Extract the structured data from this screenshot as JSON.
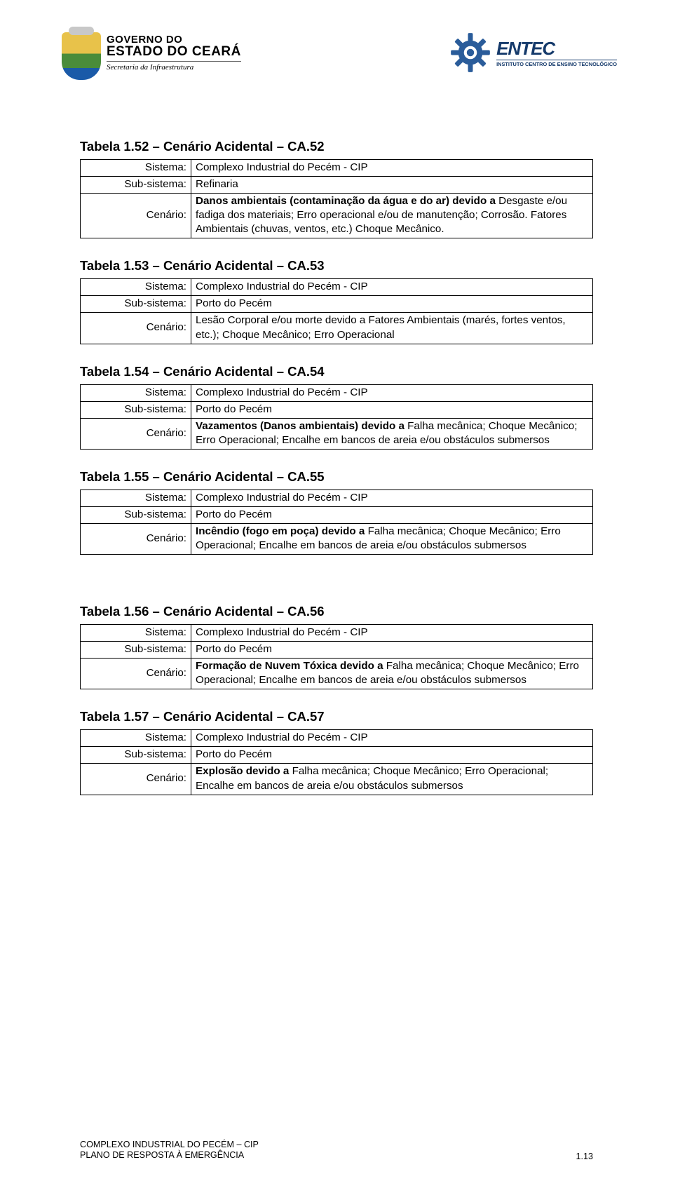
{
  "header": {
    "gov_line1": "GOVERNO DO",
    "gov_line2": "ESTADO DO CEARÁ",
    "gov_line3": "Secretaria da Infraestrutura",
    "entec_name": "ENTEC",
    "entec_sub": "INSTITUTO CENTRO DE ENSINO TECNOLÓGICO",
    "gear_color": "#2a5c9a"
  },
  "labels": {
    "sistema": "Sistema:",
    "sub_sistema": "Sub-sistema:",
    "cenario": "Cenário:"
  },
  "tables": [
    {
      "title": "Tabela 1.52 – Cenário Acidental – CA.52",
      "sistema": "Complexo Industrial do Pecém - CIP",
      "sub_sistema": "Refinaria",
      "cenario_bold": "Danos ambientais (contaminação da água e do ar) devido a",
      "cenario_rest": " Desgaste e/ou fadiga dos materiais; Erro operacional e/ou de manutenção; Corrosão. Fatores Ambientais (chuvas, ventos, etc.) Choque Mecânico."
    },
    {
      "title": "Tabela 1.53 – Cenário Acidental – CA.53",
      "sistema": "Complexo Industrial do Pecém - CIP",
      "sub_sistema": "Porto do Pecém",
      "cenario_bold": "",
      "cenario_rest": "Lesão Corporal e/ou morte devido a Fatores Ambientais (marés, fortes ventos, etc.); Choque Mecânico; Erro Operacional"
    },
    {
      "title": "Tabela 1.54 – Cenário Acidental – CA.54",
      "sistema": "Complexo Industrial do Pecém - CIP",
      "sub_sistema": "Porto do Pecém",
      "cenario_bold": "Vazamentos (Danos ambientais) devido a",
      "cenario_rest": " Falha mecânica; Choque Mecânico; Erro Operacional; Encalhe em bancos de areia e/ou obstáculos submersos"
    },
    {
      "title": "Tabela 1.55 – Cenário Acidental – CA.55",
      "sistema": "Complexo Industrial do Pecém - CIP",
      "sub_sistema": "Porto do Pecém",
      "cenario_bold": "Incêndio (fogo em poça) devido a",
      "cenario_rest": " Falha mecânica; Choque Mecânico; Erro Operacional; Encalhe em bancos de areia e/ou obstáculos submersos"
    },
    {
      "title": "Tabela 1.56 – Cenário Acidental – CA.56",
      "sistema": "Complexo Industrial do Pecém - CIP",
      "sub_sistema": "Porto do Pecém",
      "cenario_bold": "Formação de Nuvem Tóxica  devido a",
      "cenario_rest": " Falha mecânica; Choque Mecânico; Erro Operacional; Encalhe em bancos de areia e/ou obstáculos submersos",
      "gap_before": true
    },
    {
      "title": "Tabela 1.57 – Cenário Acidental – CA.57",
      "sistema": "Complexo Industrial do Pecém - CIP",
      "sub_sistema": "Porto do Pecém",
      "cenario_bold": "Explosão devido a",
      "cenario_rest": " Falha mecânica; Choque Mecânico; Erro Operacional; Encalhe em bancos de areia e/ou obstáculos submersos"
    }
  ],
  "footer": {
    "line1": "COMPLEXO INDUSTRIAL DO PECÉM – CIP",
    "line2": "PLANO DE RESPOSTA À EMERGÊNCIA",
    "page": "1.13"
  }
}
